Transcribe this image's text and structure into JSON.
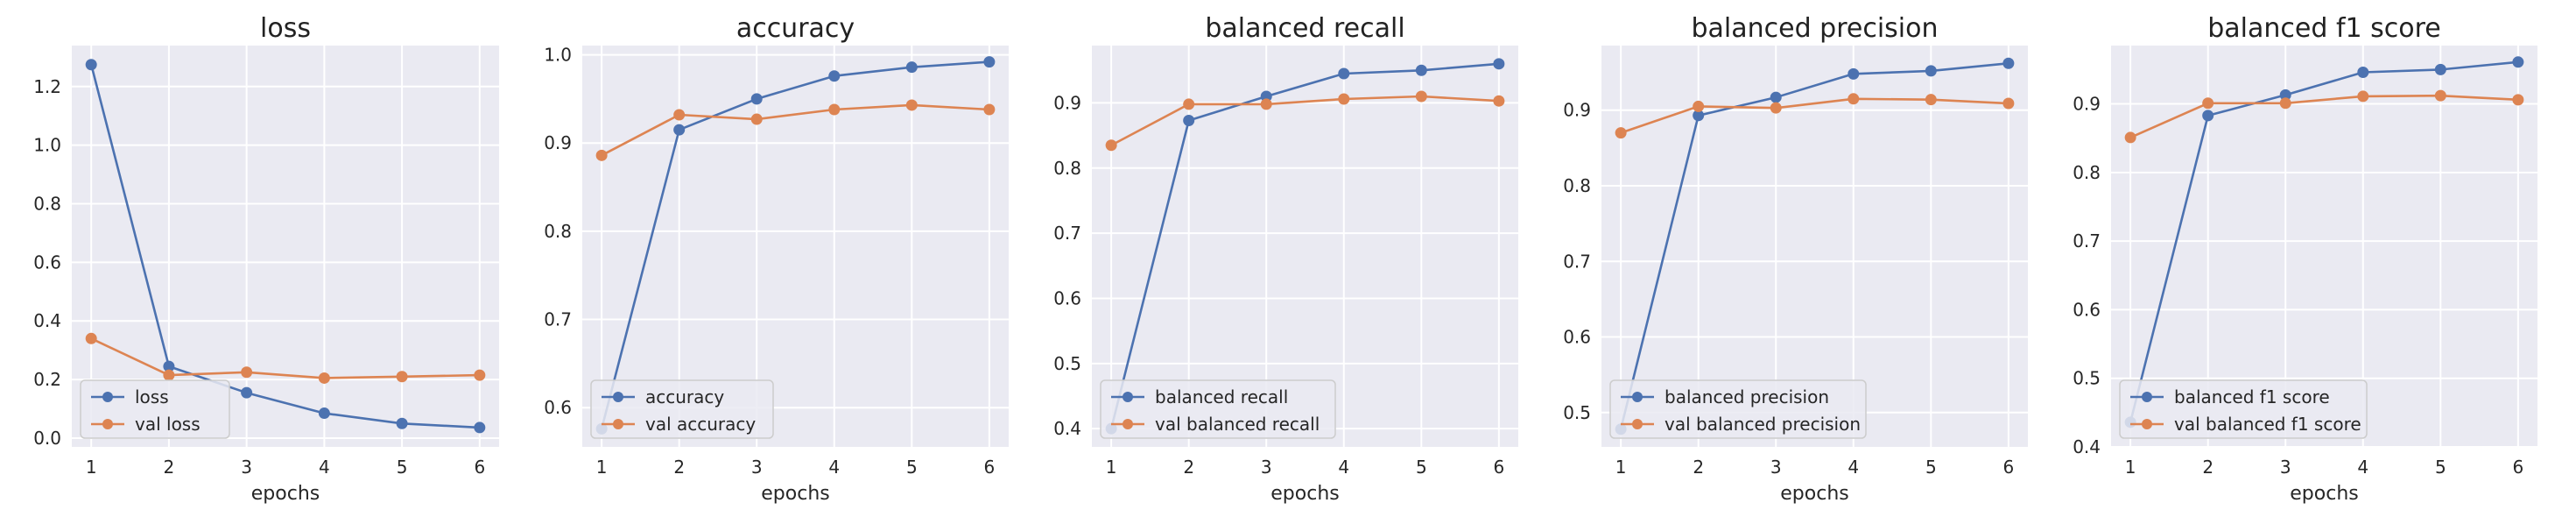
{
  "figure": {
    "background": "#ffffff",
    "axes_face": "#eaeaf2",
    "grid_color": "#ffffff"
  },
  "colors": {
    "train": "#4c72b0",
    "val": "#dd8452"
  },
  "chart_data": [
    {
      "type": "line",
      "title": "loss",
      "xlabel": "epochs",
      "ylabel": "",
      "x": [
        1,
        2,
        3,
        4,
        5,
        6
      ],
      "xlim": [
        0.75,
        6.25
      ],
      "ylim": [
        -0.03,
        1.34
      ],
      "yticks": [
        0.0,
        0.2,
        0.4,
        0.6,
        0.8,
        1.0,
        1.2
      ],
      "ytick_labels": [
        "0.0",
        "0.2",
        "0.4",
        "0.6",
        "0.8",
        "1.0",
        "1.2"
      ],
      "grid": true,
      "legend_position": "lower-left",
      "series": [
        {
          "name": "loss",
          "color": "#4c72b0",
          "values": [
            1.275,
            0.245,
            0.155,
            0.085,
            0.05,
            0.036
          ]
        },
        {
          "name": "val loss",
          "color": "#dd8452",
          "values": [
            0.34,
            0.215,
            0.225,
            0.205,
            0.21,
            0.215
          ]
        }
      ]
    },
    {
      "type": "line",
      "title": "accuracy",
      "xlabel": "epochs",
      "ylabel": "",
      "x": [
        1,
        2,
        3,
        4,
        5,
        6
      ],
      "xlim": [
        0.75,
        6.25
      ],
      "ylim": [
        0.5555,
        1.0105
      ],
      "yticks": [
        0.6,
        0.7,
        0.8,
        0.9,
        1.0
      ],
      "ytick_labels": [
        "0.6",
        "0.7",
        "0.8",
        "0.9",
        "1.0"
      ],
      "grid": true,
      "legend_position": "lower-left",
      "series": [
        {
          "name": "accuracy",
          "color": "#4c72b0",
          "values": [
            0.576,
            0.915,
            0.95,
            0.976,
            0.986,
            0.992
          ]
        },
        {
          "name": "val accuracy",
          "color": "#dd8452",
          "values": [
            0.886,
            0.932,
            0.927,
            0.938,
            0.943,
            0.938
          ]
        }
      ]
    },
    {
      "type": "line",
      "title": "balanced recall",
      "xlabel": "epochs",
      "ylabel": "",
      "x": [
        1,
        2,
        3,
        4,
        5,
        6
      ],
      "xlim": [
        0.75,
        6.25
      ],
      "ylim": [
        0.372,
        0.988
      ],
      "yticks": [
        0.4,
        0.5,
        0.6,
        0.7,
        0.8,
        0.9
      ],
      "ytick_labels": [
        "0.4",
        "0.5",
        "0.6",
        "0.7",
        "0.8",
        "0.9"
      ],
      "grid": true,
      "legend_position": "lower-left",
      "series": [
        {
          "name": "balanced recall",
          "color": "#4c72b0",
          "values": [
            0.4,
            0.873,
            0.91,
            0.945,
            0.95,
            0.96
          ]
        },
        {
          "name": "val balanced recall",
          "color": "#dd8452",
          "values": [
            0.835,
            0.898,
            0.898,
            0.906,
            0.91,
            0.903
          ]
        }
      ]
    },
    {
      "type": "line",
      "title": "balanced precision",
      "xlabel": "epochs",
      "ylabel": "",
      "x": [
        1,
        2,
        3,
        4,
        5,
        6
      ],
      "xlim": [
        0.75,
        6.25
      ],
      "ylim": [
        0.4545,
        0.9855
      ],
      "yticks": [
        0.5,
        0.6,
        0.7,
        0.8,
        0.9
      ],
      "ytick_labels": [
        "0.5",
        "0.6",
        "0.7",
        "0.8",
        "0.9"
      ],
      "grid": true,
      "legend_position": "lower-left",
      "series": [
        {
          "name": "balanced precision",
          "color": "#4c72b0",
          "values": [
            0.478,
            0.893,
            0.917,
            0.948,
            0.952,
            0.962
          ]
        },
        {
          "name": "val balanced precision",
          "color": "#dd8452",
          "values": [
            0.87,
            0.905,
            0.903,
            0.915,
            0.914,
            0.909
          ]
        }
      ]
    },
    {
      "type": "line",
      "title": "balanced f1 score",
      "xlabel": "epochs",
      "ylabel": "",
      "x": [
        1,
        2,
        3,
        4,
        5,
        6
      ],
      "xlim": [
        0.75,
        6.25
      ],
      "ylim": [
        0.4,
        0.985
      ],
      "yticks": [
        0.4,
        0.5,
        0.6,
        0.7,
        0.8,
        0.9
      ],
      "ytick_labels": [
        "0.4",
        "0.5",
        "0.6",
        "0.7",
        "0.8",
        "0.9"
      ],
      "grid": true,
      "legend_position": "lower-left",
      "series": [
        {
          "name": "balanced f1 score",
          "color": "#4c72b0",
          "values": [
            0.436,
            0.883,
            0.913,
            0.946,
            0.95,
            0.961
          ]
        },
        {
          "name": "val balanced f1 score",
          "color": "#dd8452",
          "values": [
            0.851,
            0.901,
            0.901,
            0.911,
            0.912,
            0.906
          ]
        }
      ]
    }
  ]
}
